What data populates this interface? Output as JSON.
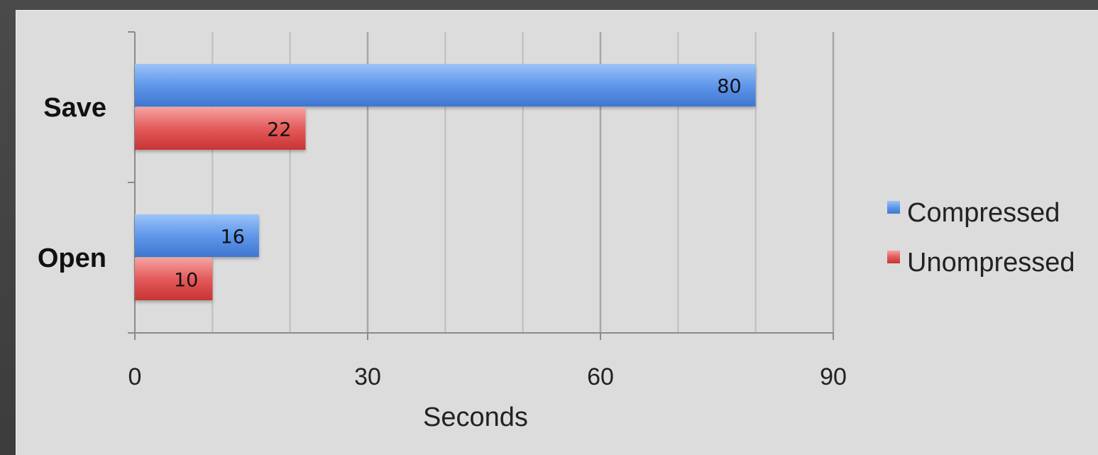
{
  "chart_data": {
    "type": "bar",
    "orientation": "horizontal",
    "categories": [
      "Save",
      "Open"
    ],
    "series": [
      {
        "name": "Compressed",
        "values": [
          80,
          16
        ],
        "color": "#5b93e6"
      },
      {
        "name": "Unompressed",
        "values": [
          22,
          10
        ],
        "color": "#e24848"
      }
    ],
    "xlim": [
      0,
      90
    ],
    "xticks": [
      0,
      30,
      60,
      90
    ],
    "xlabel": "Seconds",
    "ylabel": "",
    "title": "",
    "grid": true,
    "minor_gridlines_every": 10,
    "legend_position": "right",
    "data_labels": true
  }
}
